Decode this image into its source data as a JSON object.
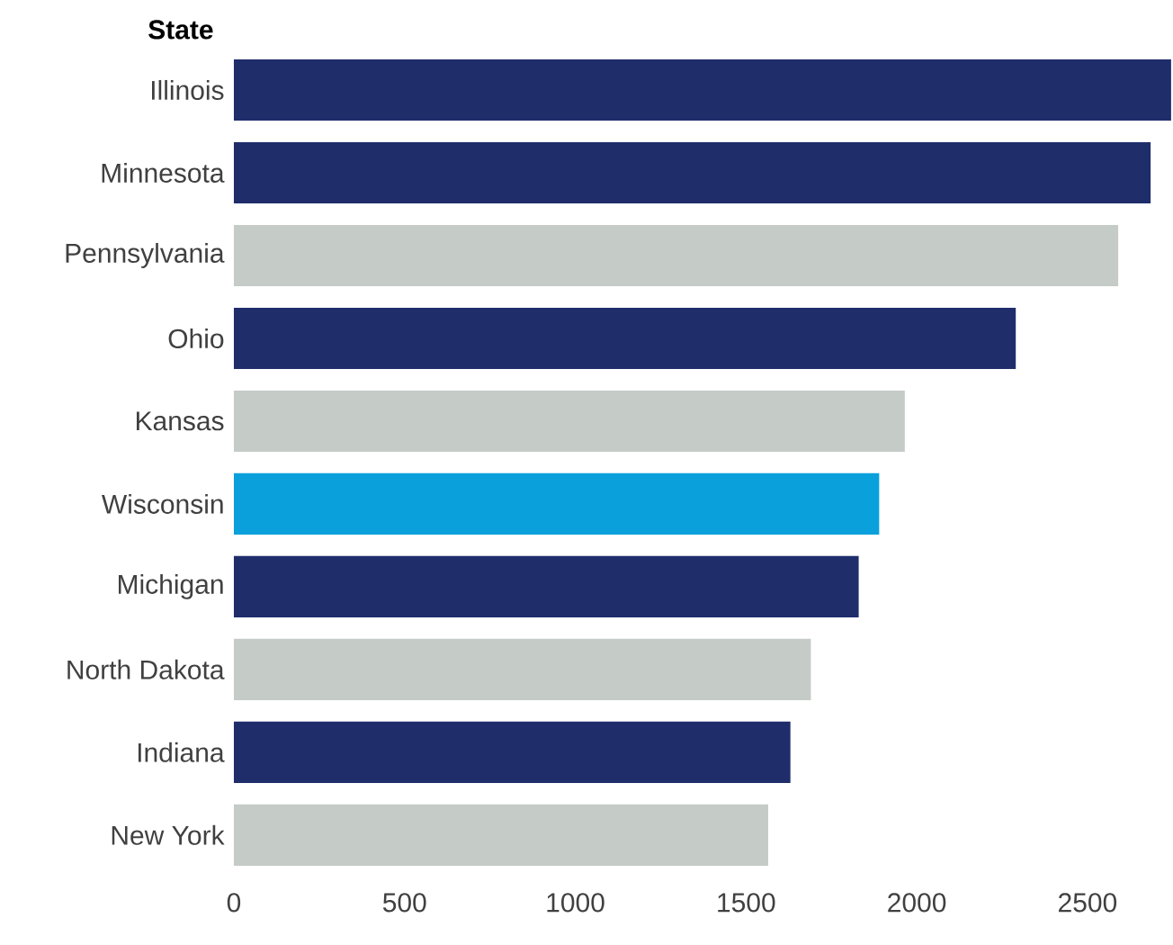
{
  "chart_data": {
    "type": "bar",
    "orientation": "horizontal",
    "ylabel": "State",
    "categories": [
      "Illinois",
      "Minnesota",
      "Pennsylvania",
      "Ohio",
      "Kansas",
      "Wisconsin",
      "Michigan",
      "North Dakota",
      "Indiana",
      "New York"
    ],
    "values": [
      2745,
      2685,
      2590,
      2290,
      1965,
      1890,
      1830,
      1690,
      1630,
      1565
    ],
    "colors": [
      "#1f2d6b",
      "#1f2d6b",
      "#c5cbc7",
      "#1f2d6b",
      "#c5cbc7",
      "#0aa0dc",
      "#1f2d6b",
      "#c5cbc7",
      "#1f2d6b",
      "#c5cbc7"
    ],
    "xlim": [
      0,
      2750
    ],
    "xticks": [
      0,
      500,
      1000,
      1500,
      2000,
      2500
    ],
    "grid": false
  }
}
